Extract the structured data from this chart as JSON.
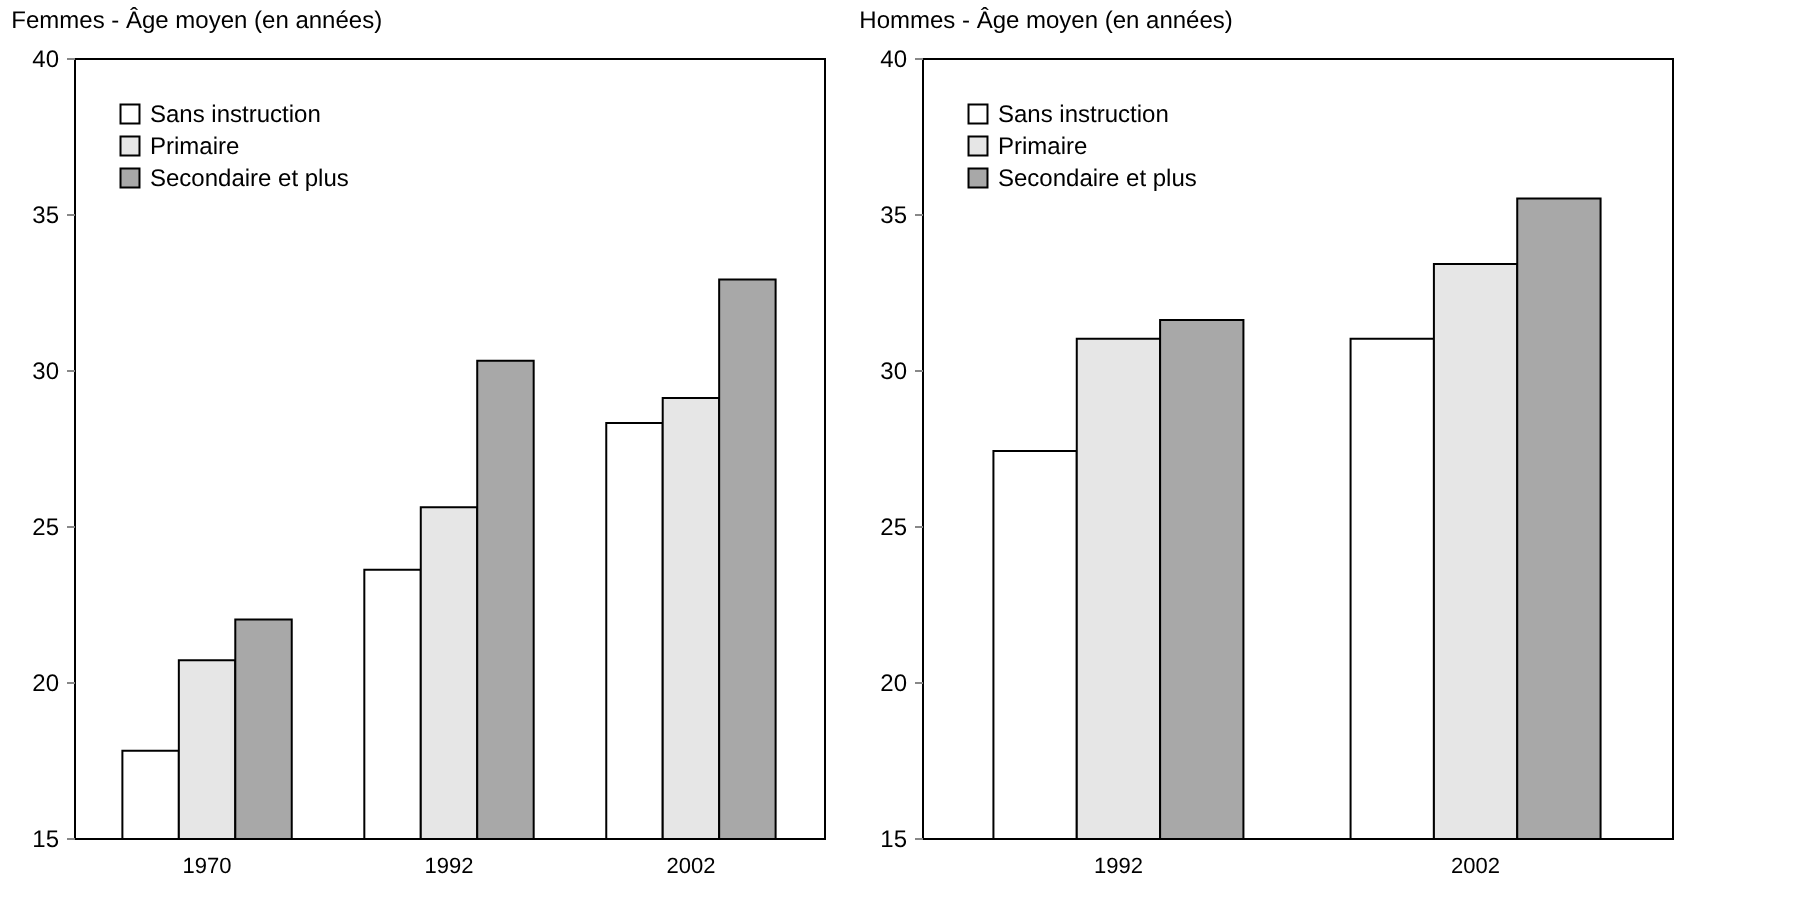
{
  "chart_data": [
    {
      "type": "bar",
      "title": "Femmes - Âge moyen (en années)",
      "categories": [
        "1970",
        "1992",
        "2002"
      ],
      "series": [
        {
          "name": "Sans instruction",
          "color": "#ffffff",
          "values": [
            17.8,
            23.6,
            28.3
          ]
        },
        {
          "name": "Primaire",
          "color": "#e6e6e6",
          "values": [
            20.7,
            25.6,
            29.1
          ]
        },
        {
          "name": "Secondaire et plus",
          "color": "#a8a8a8",
          "values": [
            22.0,
            30.3,
            32.9
          ]
        }
      ],
      "ylim": [
        15,
        40
      ],
      "yticks": [
        15,
        20,
        25,
        30,
        35,
        40
      ],
      "grid": false,
      "legend": "top left"
    },
    {
      "type": "bar",
      "title": "Hommes - Âge moyen (en années)",
      "categories": [
        "1992",
        "2002"
      ],
      "series": [
        {
          "name": "Sans instruction",
          "color": "#ffffff",
          "values": [
            27.4,
            31.0
          ]
        },
        {
          "name": "Primaire",
          "color": "#e6e6e6",
          "values": [
            31.0,
            33.4
          ]
        },
        {
          "name": "Secondaire et plus",
          "color": "#a8a8a8",
          "values": [
            31.6,
            35.5
          ]
        }
      ],
      "ylim": [
        15,
        40
      ],
      "yticks": [
        15,
        20,
        25,
        30,
        35,
        40
      ],
      "grid": false,
      "legend": "top left"
    }
  ]
}
